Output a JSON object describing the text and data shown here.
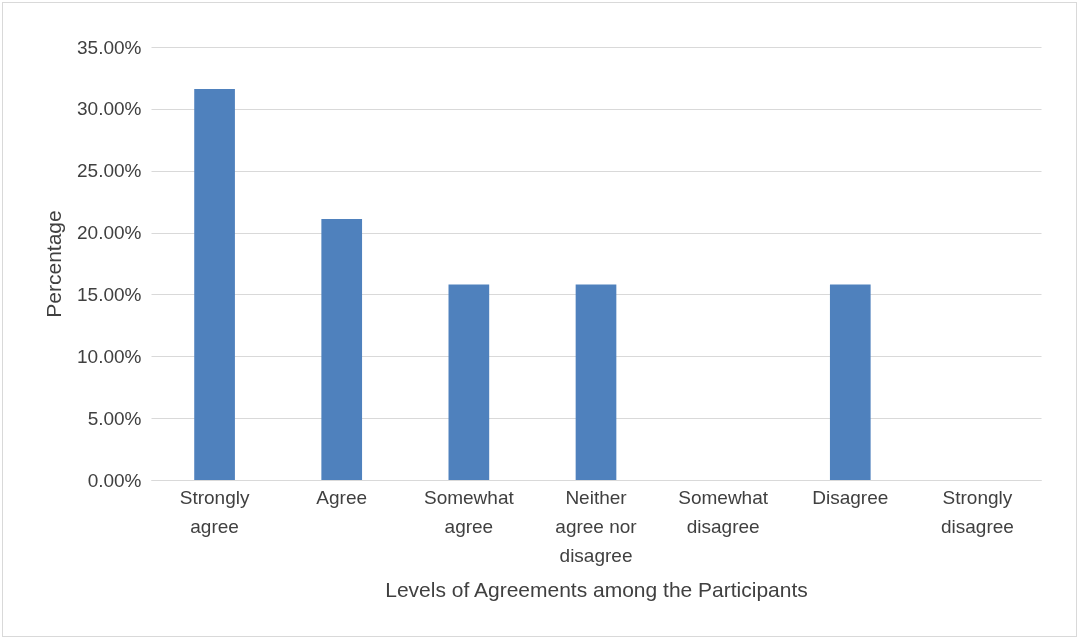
{
  "chart_data": {
    "type": "bar",
    "xlabel": "Levels of Agreements among the Participants",
    "ylabel": "Percentage",
    "categories": [
      "Strongly agree",
      "Agree",
      "Somewhat agree",
      "Neither agree nor disagree",
      "Somewhat disagree",
      "Disagree",
      "Strongly disagree"
    ],
    "values": [
      31.6,
      21.1,
      15.8,
      15.8,
      0,
      15.8,
      0
    ],
    "color": "#4f81bd",
    "ylim": [
      0,
      35
    ],
    "yticks": [
      {
        "value": 0,
        "label": "0.00%"
      },
      {
        "value": 5,
        "label": "5.00%"
      },
      {
        "value": 10,
        "label": "10.00%"
      },
      {
        "value": 15,
        "label": "15.00%"
      },
      {
        "value": 20,
        "label": "20.00%"
      },
      {
        "value": 25,
        "label": "25.00%"
      },
      {
        "value": 30,
        "label": "30.00%"
      },
      {
        "value": 35,
        "label": "35.00%"
      }
    ],
    "grid": true
  }
}
